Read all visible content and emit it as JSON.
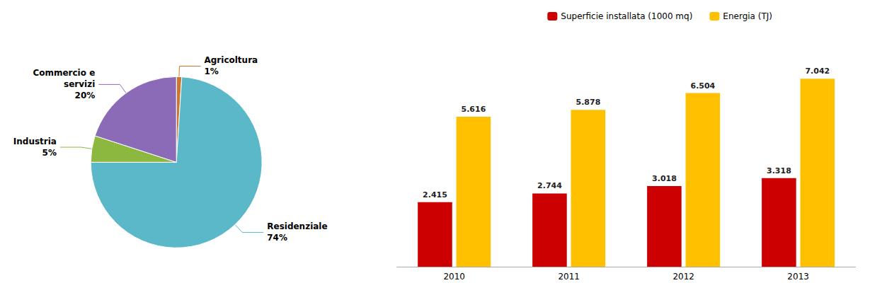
{
  "chart_data": [
    {
      "type": "pie",
      "categories": [
        "Agricoltura",
        "Residenziale",
        "Industria",
        "Commercio e\nservizi"
      ],
      "values": [
        1,
        74,
        5,
        20
      ],
      "value_labels": [
        "1%",
        "74%",
        "5%",
        "20%"
      ],
      "colors": [
        "#C87830",
        "#5BB8C8",
        "#8DB840",
        "#8B6BB8"
      ],
      "data_labels": true
    },
    {
      "type": "bar",
      "categories": [
        "2010",
        "2011",
        "2012",
        "2013"
      ],
      "series": [
        {
          "name": "Superficie installata (1000 mq)",
          "color": "#CC0000",
          "values": [
            2.415,
            2.744,
            3.018,
            3.318
          ]
        },
        {
          "name": "Energia (TJ)",
          "color": "#FFC000",
          "values": [
            5.616,
            5.878,
            6.504,
            7.042
          ]
        }
      ],
      "ylim": [
        0,
        8.4
      ],
      "grid": false,
      "legend": "top",
      "data_labels": true,
      "tick_labels": "x"
    }
  ]
}
